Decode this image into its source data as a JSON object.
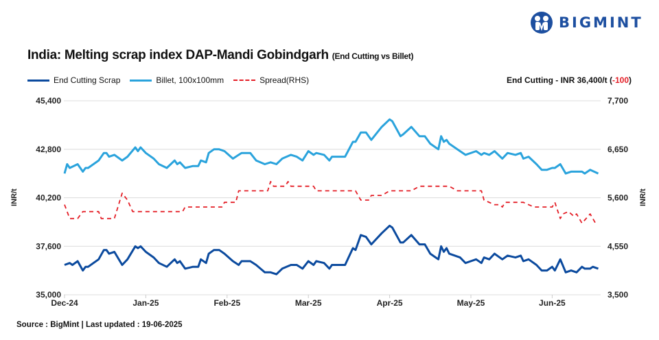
{
  "brand": {
    "name": "BIGMINT",
    "color": "#1d4fa0"
  },
  "header": {
    "title": "India: Melting scrap index DAP-Mandi Gobindgarh",
    "subtitle": "(End Cutting vs Billet)"
  },
  "latest": {
    "label": "End Cutting - INR 36,400/t (",
    "change": "-100",
    "close": ")"
  },
  "footer": {
    "source": "Source : BigMint | Last updated : 19-06-2025"
  },
  "chart_data": {
    "type": "line",
    "title": "India: Melting scrap index DAP-Mandi Gobindgarh (End Cutting vs Billet)",
    "ylabel": "INR/t",
    "y2label": "INR/t",
    "ylim": [
      35000,
      45400
    ],
    "yticks": [
      "35,000",
      "37,600",
      "40,200",
      "42,800",
      "45,400"
    ],
    "y2lim": [
      3500,
      7700
    ],
    "y2ticks": [
      "3,500",
      "4,550",
      "5,600",
      "6,650",
      "7,700"
    ],
    "xticks": [
      {
        "date": "2024-12-01",
        "label": "Dec-24"
      },
      {
        "date": "2025-01-01",
        "label": "Jan-25"
      },
      {
        "date": "2025-02-01",
        "label": "Feb-25"
      },
      {
        "date": "2025-03-01",
        "label": "Mar-25"
      },
      {
        "date": "2025-04-01",
        "label": "Apr-25"
      },
      {
        "date": "2025-05-01",
        "label": "May-25"
      },
      {
        "date": "2025-06-01",
        "label": "Jun-25"
      }
    ],
    "xend": "2025-06-19",
    "grid": true,
    "legend": "top-left",
    "series": [
      {
        "name": "End Cutting Scrap",
        "axis": "left",
        "color": "#0b4a9e",
        "style": "solid",
        "points": [
          [
            "2024-12-01",
            36600
          ],
          [
            "2024-12-03",
            36700
          ],
          [
            "2024-12-04",
            36600
          ],
          [
            "2024-12-06",
            36800
          ],
          [
            "2024-12-08",
            36300
          ],
          [
            "2024-12-09",
            36500
          ],
          [
            "2024-12-10",
            36500
          ],
          [
            "2024-12-14",
            36900
          ],
          [
            "2024-12-16",
            37400
          ],
          [
            "2024-12-17",
            37400
          ],
          [
            "2024-12-18",
            37200
          ],
          [
            "2024-12-20",
            37300
          ],
          [
            "2024-12-23",
            36600
          ],
          [
            "2024-12-25",
            36900
          ],
          [
            "2024-12-28",
            37600
          ],
          [
            "2024-12-29",
            37500
          ],
          [
            "2024-12-30",
            37600
          ],
          [
            "2025-01-01",
            37300
          ],
          [
            "2025-01-04",
            37000
          ],
          [
            "2025-01-06",
            36700
          ],
          [
            "2025-01-09",
            36500
          ],
          [
            "2025-01-12",
            36900
          ],
          [
            "2025-01-13",
            36700
          ],
          [
            "2025-01-14",
            36800
          ],
          [
            "2025-01-16",
            36400
          ],
          [
            "2025-01-19",
            36500
          ],
          [
            "2025-01-21",
            36500
          ],
          [
            "2025-01-22",
            36900
          ],
          [
            "2025-01-24",
            36700
          ],
          [
            "2025-01-25",
            37200
          ],
          [
            "2025-01-27",
            37400
          ],
          [
            "2025-01-29",
            37400
          ],
          [
            "2025-01-31",
            37200
          ],
          [
            "2025-02-03",
            36800
          ],
          [
            "2025-02-05",
            36600
          ],
          [
            "2025-02-06",
            36800
          ],
          [
            "2025-02-09",
            36800
          ],
          [
            "2025-02-11",
            36600
          ],
          [
            "2025-02-14",
            36200
          ],
          [
            "2025-02-16",
            36200
          ],
          [
            "2025-02-18",
            36100
          ],
          [
            "2025-02-20",
            36400
          ],
          [
            "2025-02-23",
            36600
          ],
          [
            "2025-02-25",
            36600
          ],
          [
            "2025-02-27",
            36400
          ],
          [
            "2025-03-01",
            36800
          ],
          [
            "2025-03-03",
            36600
          ],
          [
            "2025-03-04",
            36800
          ],
          [
            "2025-03-07",
            36700
          ],
          [
            "2025-03-09",
            36400
          ],
          [
            "2025-03-10",
            36600
          ],
          [
            "2025-03-15",
            36600
          ],
          [
            "2025-03-18",
            37500
          ],
          [
            "2025-03-19",
            37400
          ],
          [
            "2025-03-21",
            38200
          ],
          [
            "2025-03-23",
            38100
          ],
          [
            "2025-03-25",
            37700
          ],
          [
            "2025-03-29",
            38300
          ],
          [
            "2025-04-01",
            38700
          ],
          [
            "2025-04-02",
            38600
          ],
          [
            "2025-04-05",
            37800
          ],
          [
            "2025-04-06",
            37800
          ],
          [
            "2025-04-09",
            38200
          ],
          [
            "2025-04-12",
            37700
          ],
          [
            "2025-04-14",
            37700
          ],
          [
            "2025-04-16",
            37200
          ],
          [
            "2025-04-19",
            36900
          ],
          [
            "2025-04-20",
            37600
          ],
          [
            "2025-04-21",
            37300
          ],
          [
            "2025-04-22",
            37500
          ],
          [
            "2025-04-23",
            37200
          ],
          [
            "2025-04-27",
            37000
          ],
          [
            "2025-04-29",
            36700
          ],
          [
            "2025-05-03",
            36900
          ],
          [
            "2025-05-05",
            36700
          ],
          [
            "2025-05-06",
            37000
          ],
          [
            "2025-05-08",
            36900
          ],
          [
            "2025-05-10",
            37200
          ],
          [
            "2025-05-13",
            36900
          ],
          [
            "2025-05-15",
            37100
          ],
          [
            "2025-05-18",
            37000
          ],
          [
            "2025-05-20",
            37100
          ],
          [
            "2025-05-21",
            36800
          ],
          [
            "2025-05-23",
            36900
          ],
          [
            "2025-05-26",
            36600
          ],
          [
            "2025-05-28",
            36300
          ],
          [
            "2025-05-30",
            36300
          ],
          [
            "2025-06-01",
            36500
          ],
          [
            "2025-06-02",
            36300
          ],
          [
            "2025-06-04",
            36900
          ],
          [
            "2025-06-06",
            36200
          ],
          [
            "2025-06-08",
            36300
          ],
          [
            "2025-06-10",
            36200
          ],
          [
            "2025-06-12",
            36500
          ],
          [
            "2025-06-13",
            36400
          ],
          [
            "2025-06-15",
            36400
          ],
          [
            "2025-06-16",
            36500
          ],
          [
            "2025-06-18",
            36400
          ]
        ]
      },
      {
        "name": "Billet, 100x100mm",
        "axis": "left",
        "color": "#2aa3dc",
        "style": "solid",
        "points": [
          [
            "2024-12-01",
            41500
          ],
          [
            "2024-12-02",
            42000
          ],
          [
            "2024-12-03",
            41800
          ],
          [
            "2024-12-06",
            42000
          ],
          [
            "2024-12-08",
            41600
          ],
          [
            "2024-12-09",
            41800
          ],
          [
            "2024-12-10",
            41800
          ],
          [
            "2024-12-14",
            42200
          ],
          [
            "2024-12-16",
            42600
          ],
          [
            "2024-12-17",
            42600
          ],
          [
            "2024-12-18",
            42400
          ],
          [
            "2024-12-20",
            42500
          ],
          [
            "2024-12-23",
            42200
          ],
          [
            "2024-12-25",
            42400
          ],
          [
            "2024-12-28",
            42900
          ],
          [
            "2024-12-29",
            42700
          ],
          [
            "2024-12-30",
            42900
          ],
          [
            "2025-01-01",
            42600
          ],
          [
            "2025-01-04",
            42300
          ],
          [
            "2025-01-06",
            42000
          ],
          [
            "2025-01-09",
            41800
          ],
          [
            "2025-01-12",
            42200
          ],
          [
            "2025-01-13",
            42000
          ],
          [
            "2025-01-14",
            42100
          ],
          [
            "2025-01-16",
            41800
          ],
          [
            "2025-01-19",
            41900
          ],
          [
            "2025-01-21",
            41900
          ],
          [
            "2025-01-22",
            42200
          ],
          [
            "2025-01-24",
            42100
          ],
          [
            "2025-01-25",
            42600
          ],
          [
            "2025-01-27",
            42800
          ],
          [
            "2025-01-29",
            42800
          ],
          [
            "2025-01-31",
            42700
          ],
          [
            "2025-02-03",
            42300
          ],
          [
            "2025-02-05",
            42500
          ],
          [
            "2025-02-06",
            42600
          ],
          [
            "2025-02-09",
            42600
          ],
          [
            "2025-02-11",
            42200
          ],
          [
            "2025-02-14",
            42000
          ],
          [
            "2025-02-16",
            42100
          ],
          [
            "2025-02-18",
            42000
          ],
          [
            "2025-02-20",
            42300
          ],
          [
            "2025-02-23",
            42500
          ],
          [
            "2025-02-25",
            42400
          ],
          [
            "2025-02-27",
            42200
          ],
          [
            "2025-03-01",
            42700
          ],
          [
            "2025-03-03",
            42500
          ],
          [
            "2025-03-04",
            42600
          ],
          [
            "2025-03-07",
            42500
          ],
          [
            "2025-03-09",
            42200
          ],
          [
            "2025-03-10",
            42400
          ],
          [
            "2025-03-15",
            42400
          ],
          [
            "2025-03-18",
            43200
          ],
          [
            "2025-03-19",
            43200
          ],
          [
            "2025-03-21",
            43700
          ],
          [
            "2025-03-23",
            43700
          ],
          [
            "2025-03-25",
            43300
          ],
          [
            "2025-03-29",
            44000
          ],
          [
            "2025-04-01",
            44400
          ],
          [
            "2025-04-02",
            44300
          ],
          [
            "2025-04-05",
            43500
          ],
          [
            "2025-04-06",
            43600
          ],
          [
            "2025-04-09",
            44000
          ],
          [
            "2025-04-12",
            43500
          ],
          [
            "2025-04-14",
            43500
          ],
          [
            "2025-04-16",
            43100
          ],
          [
            "2025-04-19",
            42800
          ],
          [
            "2025-04-20",
            43500
          ],
          [
            "2025-04-21",
            43200
          ],
          [
            "2025-04-22",
            43300
          ],
          [
            "2025-04-23",
            43100
          ],
          [
            "2025-04-27",
            42700
          ],
          [
            "2025-04-29",
            42500
          ],
          [
            "2025-05-03",
            42700
          ],
          [
            "2025-05-05",
            42500
          ],
          [
            "2025-05-06",
            42600
          ],
          [
            "2025-05-08",
            42500
          ],
          [
            "2025-05-10",
            42700
          ],
          [
            "2025-05-13",
            42300
          ],
          [
            "2025-05-15",
            42600
          ],
          [
            "2025-05-18",
            42500
          ],
          [
            "2025-05-20",
            42600
          ],
          [
            "2025-05-21",
            42300
          ],
          [
            "2025-05-23",
            42400
          ],
          [
            "2025-05-26",
            42000
          ],
          [
            "2025-05-28",
            41700
          ],
          [
            "2025-05-30",
            41700
          ],
          [
            "2025-06-01",
            41800
          ],
          [
            "2025-06-02",
            41800
          ],
          [
            "2025-06-04",
            42000
          ],
          [
            "2025-06-06",
            41500
          ],
          [
            "2025-06-08",
            41600
          ],
          [
            "2025-06-12",
            41600
          ],
          [
            "2025-06-13",
            41500
          ],
          [
            "2025-06-15",
            41700
          ],
          [
            "2025-06-18",
            41500
          ]
        ]
      },
      {
        "name": "Spread(RHS)",
        "axis": "right",
        "color": "#e41e26",
        "style": "dashed",
        "points": [
          [
            "2024-12-01",
            5450
          ],
          [
            "2024-12-03",
            5150
          ],
          [
            "2024-12-06",
            5150
          ],
          [
            "2024-12-08",
            5300
          ],
          [
            "2024-12-14",
            5300
          ],
          [
            "2024-12-15",
            5150
          ],
          [
            "2024-12-20",
            5150
          ],
          [
            "2024-12-23",
            5700
          ],
          [
            "2024-12-25",
            5550
          ],
          [
            "2024-12-27",
            5300
          ],
          [
            "2025-01-15",
            5300
          ],
          [
            "2025-01-16",
            5400
          ],
          [
            "2025-01-30",
            5400
          ],
          [
            "2025-01-31",
            5500
          ],
          [
            "2025-02-04",
            5500
          ],
          [
            "2025-02-05",
            5750
          ],
          [
            "2025-02-15",
            5750
          ],
          [
            "2025-02-16",
            5950
          ],
          [
            "2025-02-17",
            5850
          ],
          [
            "2025-02-21",
            5850
          ],
          [
            "2025-02-22",
            5950
          ],
          [
            "2025-02-23",
            5850
          ],
          [
            "2025-03-03",
            5850
          ],
          [
            "2025-03-04",
            5750
          ],
          [
            "2025-03-19",
            5750
          ],
          [
            "2025-03-21",
            5550
          ],
          [
            "2025-03-24",
            5550
          ],
          [
            "2025-03-25",
            5650
          ],
          [
            "2025-03-29",
            5650
          ],
          [
            "2025-04-01",
            5750
          ],
          [
            "2025-04-09",
            5750
          ],
          [
            "2025-04-12",
            5850
          ],
          [
            "2025-04-23",
            5850
          ],
          [
            "2025-04-26",
            5750
          ],
          [
            "2025-05-05",
            5750
          ],
          [
            "2025-05-06",
            5550
          ],
          [
            "2025-05-10",
            5450
          ],
          [
            "2025-05-12",
            5450
          ],
          [
            "2025-05-13",
            5400
          ],
          [
            "2025-05-14",
            5500
          ],
          [
            "2025-05-21",
            5500
          ],
          [
            "2025-05-25",
            5400
          ],
          [
            "2025-06-01",
            5400
          ],
          [
            "2025-06-02",
            5500
          ],
          [
            "2025-06-04",
            5150
          ],
          [
            "2025-06-05",
            5250
          ],
          [
            "2025-06-07",
            5300
          ],
          [
            "2025-06-09",
            5200
          ],
          [
            "2025-06-10",
            5250
          ],
          [
            "2025-06-12",
            5050
          ],
          [
            "2025-06-15",
            5250
          ],
          [
            "2025-06-17",
            5050
          ]
        ]
      }
    ]
  }
}
